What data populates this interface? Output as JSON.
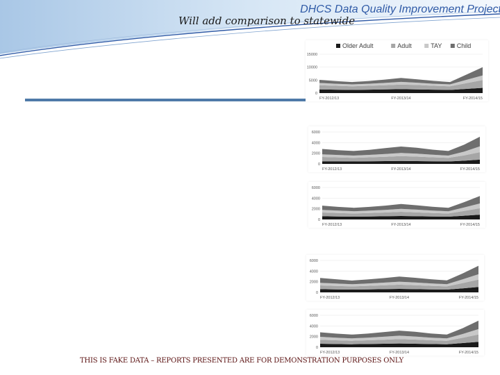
{
  "header": {
    "title": "DHCS Data Quality Improvement Project",
    "subtitle": "Will add comparison to statewide"
  },
  "footer": {
    "note": "THIS IS FAKE DATA – REPORTS PRESENTED ARE FOR DEMONSTRATION PURPOSES ONLY"
  },
  "colors": {
    "brand_blue": "#2f5aa6",
    "rule_blue": "#4f7aa8",
    "older_adult": "#1a1a1a",
    "adult": "#a6a6a6",
    "tay": "#c8c8c8",
    "child": "#6e6e6e"
  },
  "chart_data": [
    {
      "type": "area",
      "stacked": true,
      "legend": [
        "Older Adult",
        "Adult",
        "TAY",
        "Child"
      ],
      "legend_position": "top",
      "categories": [
        "FY-2012/13",
        "",
        "",
        "",
        "",
        "FY-2013/14",
        "",
        "",
        "",
        "",
        "FY-2014/15"
      ],
      "y_ticks": [
        "0",
        "5000",
        "10000",
        "15000"
      ],
      "ylim": [
        0,
        15000
      ],
      "series": [
        {
          "name": "Older Adult",
          "values": [
            1400,
            1300,
            1200,
            1300,
            1400,
            1500,
            1400,
            1300,
            1200,
            1600,
            2000
          ]
        },
        {
          "name": "Adult",
          "values": [
            1600,
            1500,
            1400,
            1500,
            1600,
            1800,
            1700,
            1500,
            1400,
            2200,
            3000
          ]
        },
        {
          "name": "TAY",
          "values": [
            900,
            800,
            750,
            800,
            900,
            1000,
            900,
            800,
            750,
            1300,
            1800
          ]
        },
        {
          "name": "Child",
          "values": [
            1200,
            1000,
            900,
            1000,
            1300,
            1500,
            1300,
            1100,
            900,
            2000,
            3200
          ]
        }
      ]
    },
    {
      "type": "area",
      "stacked": true,
      "categories": [
        "FY-2012/13",
        "",
        "",
        "",
        "",
        "FY-2013/14",
        "",
        "",
        "",
        "",
        "FY-2014/15"
      ],
      "y_ticks": [
        "0",
        "2000",
        "4000",
        "6000"
      ],
      "ylim": [
        0,
        6000
      ],
      "series": [
        {
          "name": "Older Adult",
          "values": [
            500,
            480,
            450,
            480,
            520,
            560,
            520,
            480,
            450,
            600,
            800
          ]
        },
        {
          "name": "Adult",
          "values": [
            800,
            750,
            700,
            760,
            820,
            900,
            850,
            760,
            700,
            1000,
            1400
          ]
        },
        {
          "name": "TAY",
          "values": [
            500,
            450,
            420,
            460,
            520,
            600,
            560,
            480,
            420,
            700,
            1100
          ]
        },
        {
          "name": "Child",
          "values": [
            1000,
            900,
            850,
            950,
            1100,
            1200,
            1100,
            950,
            850,
            1300,
            1800
          ]
        }
      ]
    },
    {
      "type": "area",
      "stacked": true,
      "categories": [
        "FY-2012/13",
        "",
        "",
        "",
        "",
        "FY-2013/14",
        "",
        "",
        "",
        "",
        "FY-2014/15"
      ],
      "y_ticks": [
        "0",
        "2000",
        "4000",
        "6000"
      ],
      "ylim": [
        0,
        6000
      ],
      "series": [
        {
          "name": "Older Adult",
          "values": [
            600,
            560,
            520,
            560,
            600,
            650,
            600,
            560,
            520,
            700,
            900
          ]
        },
        {
          "name": "Adult",
          "values": [
            700,
            650,
            600,
            650,
            700,
            780,
            720,
            650,
            600,
            900,
            1200
          ]
        },
        {
          "name": "TAY",
          "values": [
            500,
            450,
            420,
            450,
            500,
            560,
            520,
            460,
            420,
            650,
            900
          ]
        },
        {
          "name": "Child",
          "values": [
            800,
            700,
            650,
            700,
            800,
            900,
            820,
            720,
            650,
            1000,
            1400
          ]
        }
      ]
    },
    {
      "type": "area",
      "stacked": true,
      "categories": [
        "FY-2012/13",
        "",
        "",
        "",
        "",
        "FY-2013/14",
        "",
        "",
        "",
        "",
        "FY-2014/15"
      ],
      "y_ticks": [
        "0",
        "2000",
        "4000",
        "6000"
      ],
      "ylim": [
        0,
        6000
      ],
      "series": [
        {
          "name": "Older Adult",
          "values": [
            600,
            560,
            520,
            560,
            600,
            650,
            600,
            560,
            520,
            750,
            1000
          ]
        },
        {
          "name": "Adult",
          "values": [
            700,
            650,
            600,
            660,
            720,
            800,
            740,
            660,
            600,
            1000,
            1400
          ]
        },
        {
          "name": "TAY",
          "values": [
            500,
            450,
            400,
            440,
            500,
            560,
            520,
            460,
            420,
            700,
            1000
          ]
        },
        {
          "name": "Child",
          "values": [
            900,
            800,
            700,
            760,
            860,
            950,
            880,
            780,
            700,
            1100,
            1600
          ]
        }
      ]
    },
    {
      "type": "area",
      "stacked": true,
      "categories": [
        "FY-2012/13",
        "",
        "",
        "",
        "",
        "FY-2013/14",
        "",
        "",
        "",
        "",
        "FY-2014/15"
      ],
      "y_ticks": [
        "0",
        "2000",
        "4000",
        "6000"
      ],
      "ylim": [
        0,
        6000
      ],
      "series": [
        {
          "name": "Older Adult",
          "values": [
            650,
            600,
            560,
            600,
            650,
            700,
            650,
            600,
            560,
            780,
            1000
          ]
        },
        {
          "name": "Adult",
          "values": [
            750,
            700,
            650,
            700,
            760,
            840,
            780,
            700,
            650,
            1000,
            1400
          ]
        },
        {
          "name": "TAY",
          "values": [
            550,
            500,
            460,
            500,
            560,
            620,
            580,
            500,
            460,
            700,
            1000
          ]
        },
        {
          "name": "Child",
          "values": [
            850,
            760,
            700,
            760,
            860,
            960,
            880,
            780,
            700,
            1100,
            1600
          ]
        }
      ]
    }
  ]
}
